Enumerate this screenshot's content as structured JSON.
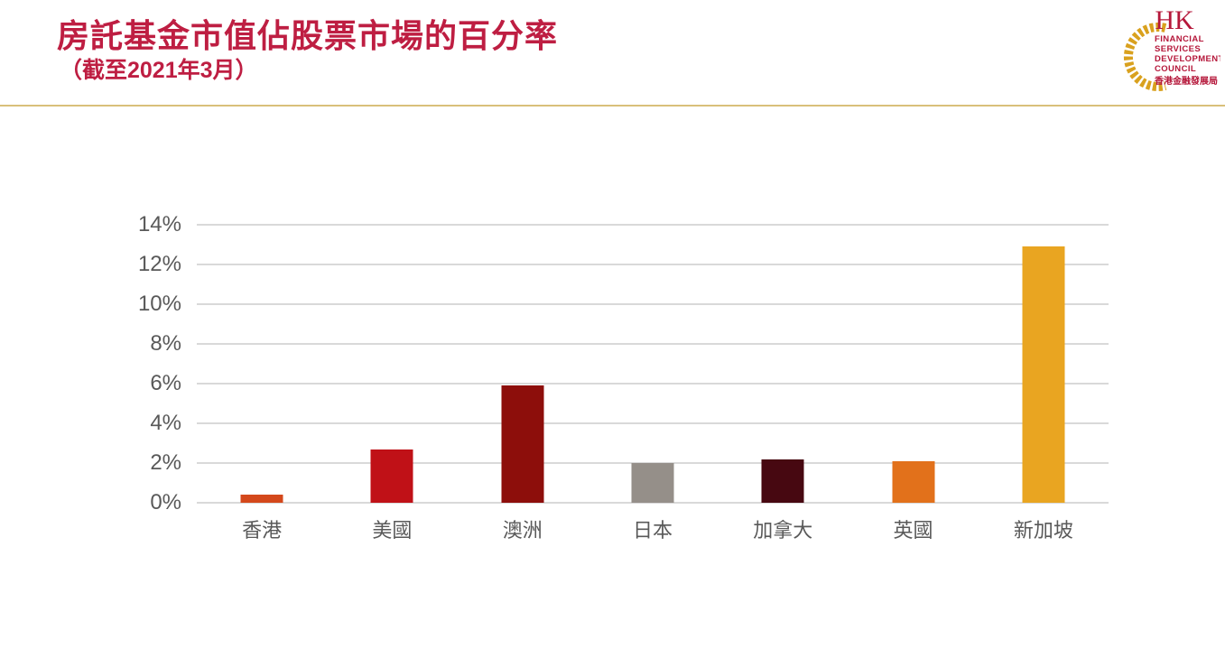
{
  "header": {
    "title": "房託基金市值佔股票市場的百分率",
    "subtitle": "（截至2021年3月）",
    "title_color": "#BE1E42"
  },
  "divider_color": "#D9C07A",
  "logo": {
    "acronym": "HK",
    "line1": "FINANCIAL",
    "line2": "SERVICES",
    "line3": "DEVELOPMENT",
    "line4": "COUNCIL",
    "chinese": "香港金融發展局",
    "gold_color": "#D9A11E",
    "crimson_color": "#B5173A"
  },
  "chart_data": {
    "type": "bar",
    "title": "房託基金市值佔股票市場的百分率（截至2021年3月）",
    "categories": [
      "香港",
      "美國",
      "澳洲",
      "日本",
      "加拿大",
      "英國",
      "新加坡"
    ],
    "values": [
      0.4,
      2.7,
      5.9,
      2.0,
      2.2,
      2.1,
      12.9
    ],
    "bar_colors": [
      "#D4481B",
      "#C01117",
      "#8D0E0B",
      "#958F89",
      "#470811",
      "#E2711B",
      "#E9A521"
    ],
    "xlabel": "",
    "ylabel": "",
    "ylim": [
      0,
      14
    ],
    "ytick_step": 2,
    "ytick_suffix": "%",
    "grid": true,
    "gridline_color": "#D9D9D9",
    "axis_label_color": "#595959",
    "legend": "none"
  }
}
